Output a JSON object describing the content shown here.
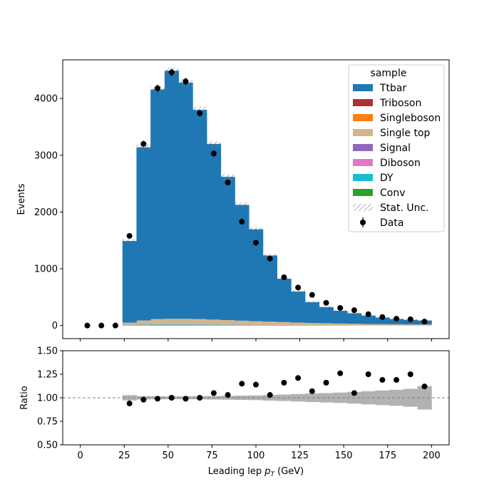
{
  "chart_data": [
    {
      "type": "bar",
      "stacked": true,
      "ylabel": "Events",
      "ylim": [
        -230,
        4680
      ],
      "xlim": [
        -10,
        210
      ],
      "yticks": [
        "0",
        "1000",
        "2000",
        "3000",
        "4000"
      ],
      "bin_edges": [
        0,
        8,
        16,
        24,
        32,
        40,
        48,
        56,
        64,
        72,
        80,
        88,
        96,
        104,
        112,
        120,
        128,
        136,
        144,
        152,
        160,
        168,
        176,
        184,
        192,
        200
      ],
      "series": [
        {
          "name": "Conv",
          "color": "#2ca02c",
          "values": [
            0,
            0,
            0,
            5,
            6,
            7,
            7,
            7,
            6,
            5,
            5,
            4,
            4,
            3,
            3,
            3,
            2,
            2,
            2,
            1,
            1,
            1,
            1,
            1,
            1
          ]
        },
        {
          "name": "DY",
          "color": "#17becf",
          "values": [
            0,
            0,
            0,
            8,
            10,
            12,
            12,
            12,
            11,
            10,
            9,
            8,
            7,
            6,
            6,
            5,
            4,
            4,
            3,
            3,
            2,
            2,
            2,
            2,
            1
          ]
        },
        {
          "name": "Diboson",
          "color": "#e377c2",
          "values": [
            0,
            0,
            0,
            2,
            2,
            3,
            3,
            3,
            3,
            3,
            2,
            2,
            2,
            2,
            2,
            1,
            1,
            1,
            1,
            1,
            1,
            1,
            1,
            1,
            1
          ]
        },
        {
          "name": "Signal",
          "color": "#9467bd",
          "values": [
            0,
            0,
            0,
            1,
            1,
            1,
            1,
            1,
            1,
            1,
            1,
            1,
            1,
            1,
            1,
            1,
            1,
            1,
            1,
            1,
            1,
            1,
            1,
            1,
            1
          ]
        },
        {
          "name": "Single top",
          "color": "#d4b48c",
          "values": [
            0,
            0,
            0,
            35,
            70,
            90,
            95,
            95,
            92,
            85,
            78,
            70,
            62,
            55,
            48,
            42,
            37,
            32,
            28,
            25,
            22,
            20,
            18,
            16,
            14
          ]
        },
        {
          "name": "Singleboson",
          "color": "#ff7f0e",
          "values": [
            0,
            0,
            0,
            1,
            1,
            1,
            1,
            1,
            1,
            1,
            1,
            1,
            1,
            1,
            1,
            1,
            1,
            1,
            1,
            1,
            0,
            0,
            0,
            0,
            0
          ]
        },
        {
          "name": "Triboson",
          "color": "#b03030",
          "values": [
            0,
            0,
            0,
            0,
            0,
            0,
            0,
            0,
            0,
            0,
            0,
            0,
            0,
            0,
            0,
            0,
            0,
            0,
            0,
            0,
            0,
            0,
            0,
            0,
            0
          ]
        },
        {
          "name": "Ttbar",
          "color": "#1f77b4",
          "values": [
            0,
            0,
            0,
            1438,
            3050,
            4046,
            4371,
            4161,
            3686,
            3095,
            2524,
            2040,
            1619,
            1167,
            764,
            547,
            367,
            285,
            224,
            185,
            149,
            116,
            92,
            80,
            71
          ]
        }
      ],
      "stat_unc_label": "Stat. Unc.",
      "data": {
        "name": "Data",
        "x": [
          4,
          12,
          20,
          28,
          36,
          44,
          52,
          60,
          68,
          76,
          84,
          92,
          100,
          108,
          116,
          124,
          132,
          140,
          148,
          156,
          164,
          172,
          180,
          188,
          196
        ],
        "y": [
          0,
          0,
          0,
          1580,
          3200,
          4180,
          4460,
          4300,
          3740,
          3030,
          2520,
          1830,
          1460,
          1180,
          850,
          670,
          540,
          400,
          310,
          270,
          200,
          150,
          120,
          110,
          70
        ]
      },
      "legend": {
        "title": "sample",
        "loc": "upper right"
      }
    },
    {
      "type": "scatter",
      "xlabel_prefix": "Leading lep ",
      "xlabel_var": "p",
      "xlabel_sub": "T",
      "xlabel_suffix": " (GeV)",
      "ylabel": "Ratio",
      "ylim": [
        0.5,
        1.5
      ],
      "yticks": [
        "0.50",
        "0.75",
        "1.00",
        "1.25",
        "1.50"
      ],
      "xticks": [
        "0",
        "25",
        "50",
        "75",
        "100",
        "125",
        "150",
        "175",
        "200"
      ],
      "reference_line": 1.0,
      "x": [
        28,
        36,
        44,
        52,
        60,
        68,
        76,
        84,
        92,
        100,
        108,
        116,
        124,
        132,
        140,
        148,
        156,
        164,
        172,
        180,
        188,
        196
      ],
      "y": [
        0.94,
        0.98,
        0.99,
        1.0,
        0.99,
        1.0,
        1.05,
        1.03,
        1.15,
        1.14,
        1.03,
        1.16,
        1.21,
        1.07,
        1.16,
        1.26,
        1.05,
        1.25,
        1.19,
        1.19,
        1.25,
        1.12
      ],
      "unc_x": [
        24,
        32,
        40,
        48,
        56,
        64,
        72,
        80,
        88,
        96,
        104,
        112,
        120,
        128,
        136,
        144,
        152,
        160,
        168,
        176,
        184,
        192
      ],
      "unc_halfwidth": [
        0.028,
        0.018,
        0.016,
        0.015,
        0.016,
        0.017,
        0.019,
        0.021,
        0.023,
        0.025,
        0.03,
        0.034,
        0.04,
        0.045,
        0.05,
        0.055,
        0.062,
        0.07,
        0.078,
        0.085,
        0.095,
        0.125
      ]
    }
  ]
}
